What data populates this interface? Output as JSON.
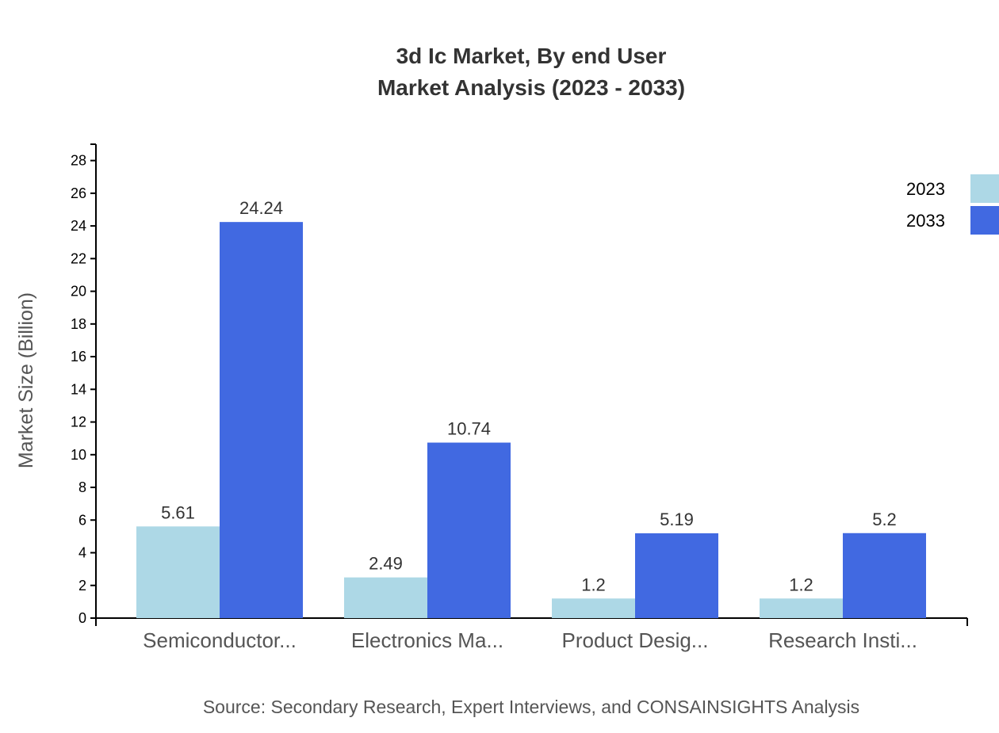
{
  "chart_data": {
    "type": "bar",
    "title": "3d Ic Market, By end User",
    "subtitle": "Market Analysis (2023 - 2033)",
    "xlabel": "",
    "ylabel": "Market Size (Billion)",
    "ylim": [
      0,
      29
    ],
    "yticks": [
      0,
      2,
      4,
      6,
      8,
      10,
      12,
      14,
      16,
      18,
      20,
      22,
      24,
      26,
      28
    ],
    "grid": false,
    "legend_position": "top-right",
    "categories": [
      "Semiconductor...",
      "Electronics Ma...",
      "Product Desig...",
      "Research Insti..."
    ],
    "series": [
      {
        "name": "2023",
        "color": "#add8e6",
        "values": [
          5.61,
          2.49,
          1.2,
          1.2
        ]
      },
      {
        "name": "2033",
        "color": "#4169e1",
        "values": [
          24.24,
          10.74,
          5.19,
          5.2
        ]
      }
    ],
    "source": "Source: Secondary Research, Expert Interviews, and CONSAINSIGHTS Analysis"
  }
}
